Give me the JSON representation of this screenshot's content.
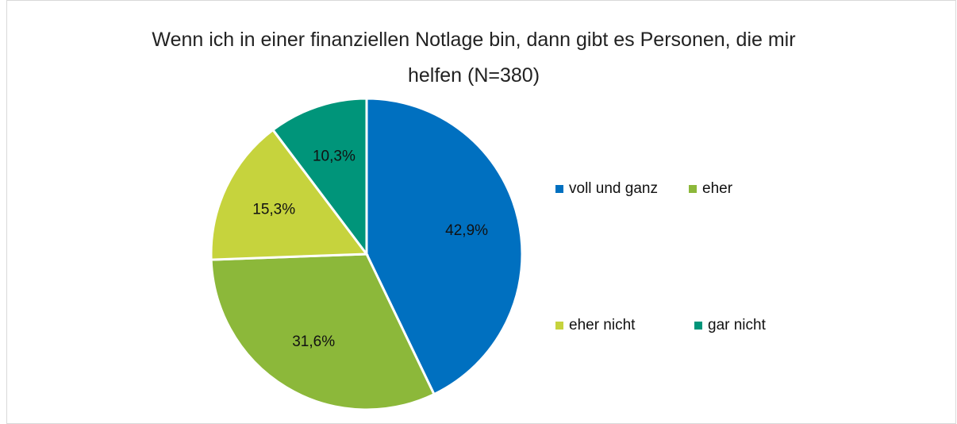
{
  "chart_data": {
    "type": "pie",
    "title": "Wenn ich in einer finanziellen Notlage bin, dann gibt es Personen, die mir helfen (N=380)",
    "categories": [
      "voll und ganz",
      "eher",
      "eher nicht",
      "gar nicht"
    ],
    "values": [
      42.9,
      31.6,
      15.3,
      10.3
    ],
    "value_labels": [
      "42,9%",
      "31,6%",
      "15,3%",
      "10,3%"
    ],
    "colors": [
      "#0070c0",
      "#8cb83a",
      "#c6d33d",
      "#00957a"
    ]
  }
}
